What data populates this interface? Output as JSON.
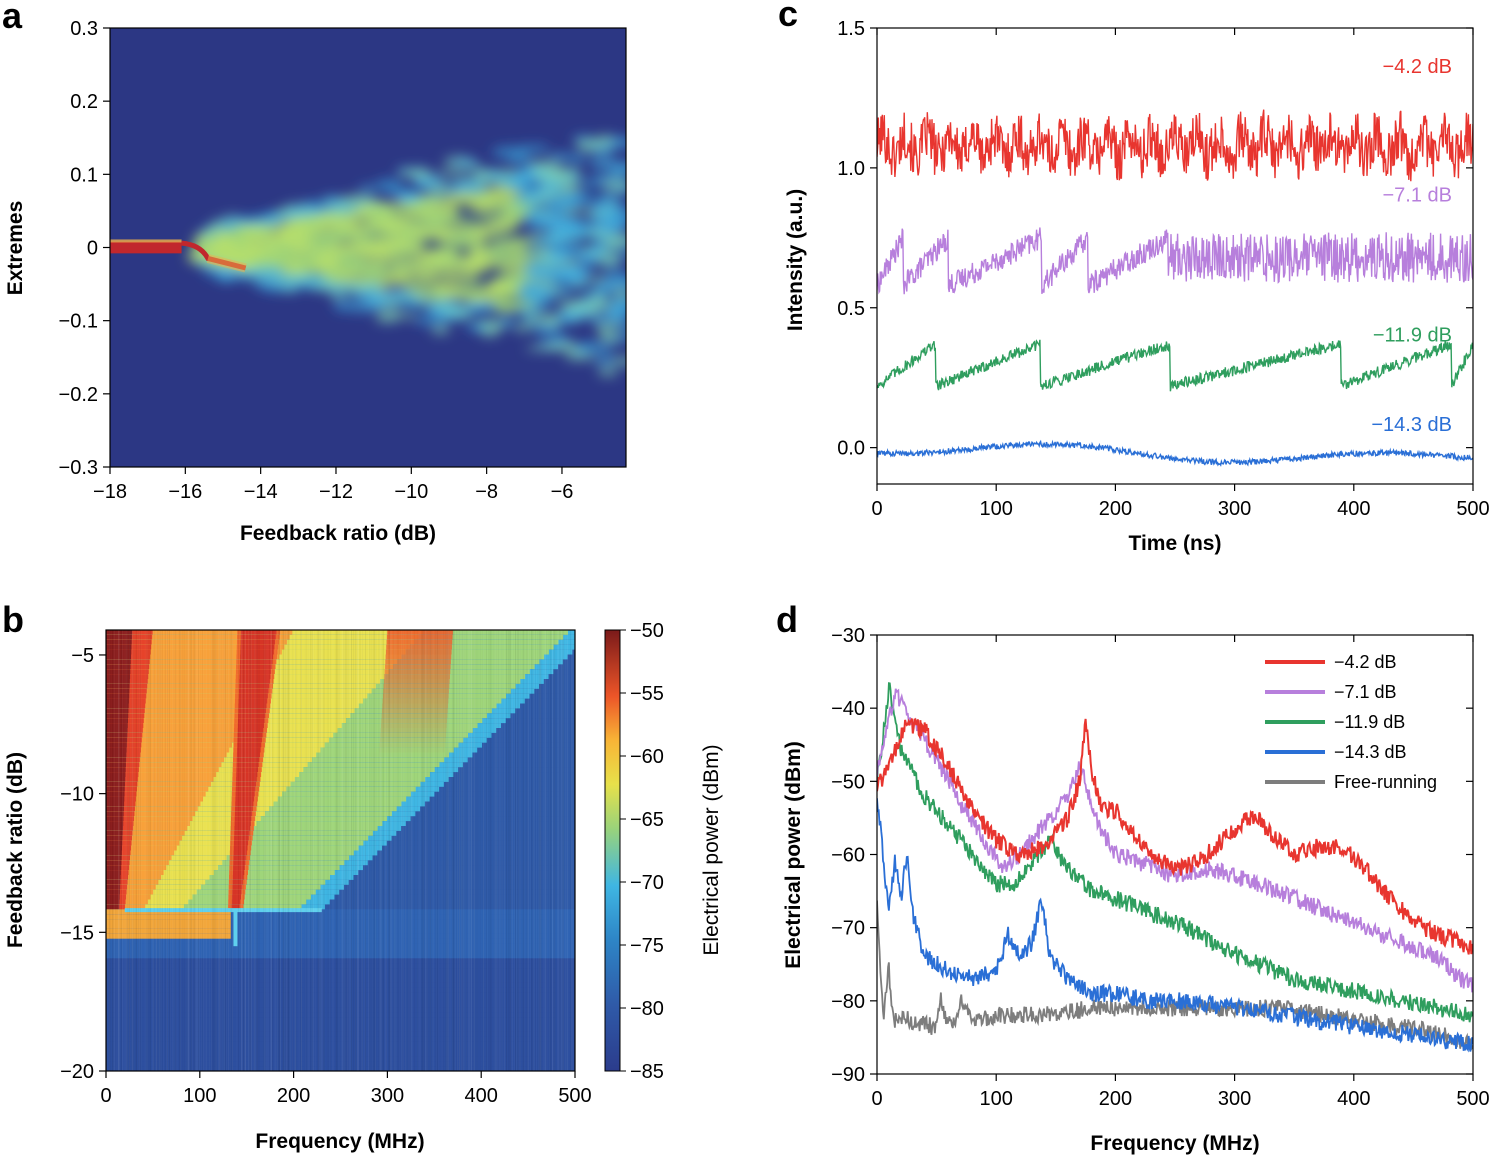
{
  "chart_data": [
    {
      "panel": "a",
      "type": "heatmap",
      "title": "",
      "xlabel": "Feedback ratio (dB)",
      "ylabel": "Extremes",
      "xlim": [
        -18,
        -4.3
      ],
      "ylim": [
        -0.3,
        0.3
      ],
      "xticks": [
        "−18",
        "−16",
        "−14",
        "−12",
        "−10",
        "−8",
        "−6"
      ],
      "xtick_values": [
        -18,
        -16,
        -14,
        -12,
        -10,
        -8,
        -6
      ],
      "yticks": [
        "0.3",
        "0.2",
        "0.1",
        "0",
        "−0.1",
        "−0.2",
        "−0.3"
      ],
      "ytick_values": [
        0.3,
        0.2,
        0.1,
        0,
        -0.1,
        -0.2,
        -0.3
      ],
      "description_regions": {
        "stable_until_db": -15.8,
        "spread_start_db": -15.5,
        "max_extreme_at_minus5db": 0.2,
        "min_extreme_at_minus5db": -0.2
      },
      "colors": {
        "background": "#2c3784",
        "low": "#3aa7dc",
        "mid": "#b8e06c",
        "high": "#c1272d"
      }
    },
    {
      "panel": "b",
      "type": "heatmap",
      "title": "",
      "xlabel": "Frequency (MHz)",
      "ylabel": "Feedback ratio (dB)",
      "xlim": [
        0,
        500
      ],
      "ylim": [
        -20,
        -4.1
      ],
      "xticks": [
        "0",
        "100",
        "200",
        "300",
        "400",
        "500"
      ],
      "xtick_values": [
        0,
        100,
        200,
        300,
        400,
        500
      ],
      "yticks": [
        "−5",
        "−10",
        "−15",
        "−20"
      ],
      "ytick_values": [
        -5,
        -10,
        -15,
        -20
      ],
      "colorbar": {
        "label": "Electrical power (dBm)",
        "range": [
          -85,
          -50
        ],
        "ticks": [
          "−50",
          "−55",
          "−60",
          "−65",
          "−70",
          "−75",
          "−80",
          "−85"
        ],
        "tick_values": [
          -50,
          -55,
          -60,
          -65,
          -70,
          -75,
          -80,
          -85
        ]
      },
      "threshold_feedback_db": -14.2,
      "notch_frequency_mhz": 138
    },
    {
      "panel": "c",
      "type": "line",
      "title": "",
      "xlabel": "Time (ns)",
      "ylabel": "Intensity (a.u.)",
      "xlim": [
        0,
        500
      ],
      "ylim": [
        -0.13,
        1.5
      ],
      "xticks": [
        "0",
        "100",
        "200",
        "300",
        "400",
        "500"
      ],
      "xtick_values": [
        0,
        100,
        200,
        300,
        400,
        500
      ],
      "yticks": [
        "1.5",
        "1.0",
        "0.5",
        "0.0"
      ],
      "ytick_values": [
        1.5,
        1.0,
        0.5,
        0.0
      ],
      "series": [
        {
          "name": "−4.2 dB",
          "color": "#e8352f",
          "offset": 1.08,
          "amplitude": 0.09,
          "regime": "chaotic"
        },
        {
          "name": "−7.1 dB",
          "color": "#b77fdc",
          "offset": 0.68,
          "amplitude": 0.1,
          "regime": "lff_to_chaos",
          "dropouts_ns": [
            22,
            60,
            138,
            177,
            244
          ]
        },
        {
          "name": "−11.9 dB",
          "color": "#2f9e5e",
          "offset": 0.27,
          "amplitude": 0.15,
          "regime": "low_frequency_fluctuations",
          "dropouts_ns": [
            49,
            137,
            246,
            389,
            482
          ]
        },
        {
          "name": "−14.3 dB",
          "color": "#2a6fd6",
          "offset": -0.02,
          "amplitude": 0.04,
          "regime": "weak_fluctuations"
        }
      ]
    },
    {
      "panel": "d",
      "type": "line",
      "title": "",
      "xlabel": "Frequency (MHz)",
      "ylabel": "Electrical power (dBm)",
      "xlim": [
        0,
        500
      ],
      "ylim": [
        -90,
        -30
      ],
      "xticks": [
        "0",
        "100",
        "200",
        "300",
        "400",
        "500"
      ],
      "xtick_values": [
        0,
        100,
        200,
        300,
        400,
        500
      ],
      "yticks": [
        "−30",
        "−40",
        "−50",
        "−60",
        "−70",
        "−80",
        "−90"
      ],
      "ytick_values": [
        -30,
        -40,
        -50,
        -60,
        -70,
        -80,
        -90
      ],
      "legend_position": "top-right",
      "series": [
        {
          "name": "−4.2 dB",
          "color": "#e8352f",
          "x": [
            0,
            10,
            25,
            40,
            60,
            80,
            100,
            120,
            140,
            160,
            170,
            175,
            180,
            190,
            200,
            210,
            230,
            250,
            270,
            290,
            310,
            320,
            330,
            350,
            370,
            390,
            410,
            430,
            450,
            470,
            490,
            500
          ],
          "y": [
            -51,
            -48,
            -42,
            -43,
            -48,
            -54,
            -58,
            -60,
            -59,
            -55,
            -50,
            -41,
            -49,
            -54,
            -54,
            -56,
            -60,
            -62,
            -61,
            -58,
            -55,
            -55,
            -57,
            -60,
            -59,
            -59,
            -62,
            -66,
            -69,
            -71,
            -72,
            -73
          ]
        },
        {
          "name": "−7.1 dB",
          "color": "#b77fdc",
          "x": [
            0,
            5,
            15,
            30,
            50,
            70,
            90,
            105,
            120,
            140,
            160,
            170,
            175,
            180,
            190,
            200,
            220,
            250,
            280,
            300,
            320,
            350,
            380,
            410,
            440,
            470,
            490,
            500
          ],
          "y": [
            -49,
            -45,
            -38,
            -42,
            -47,
            -53,
            -58,
            -62,
            -60,
            -56,
            -52,
            -48,
            -50,
            -54,
            -57,
            -60,
            -61,
            -63,
            -62,
            -63,
            -64,
            -66,
            -68,
            -70,
            -72,
            -74,
            -77,
            -78
          ]
        },
        {
          "name": "−11.9 dB",
          "color": "#2f9e5e",
          "x": [
            0,
            5,
            10,
            20,
            40,
            60,
            80,
            100,
            115,
            130,
            145,
            160,
            180,
            200,
            230,
            260,
            290,
            320,
            350,
            380,
            410,
            440,
            470,
            500
          ],
          "y": [
            -50,
            -44,
            -37,
            -46,
            -52,
            -56,
            -60,
            -64,
            -64,
            -61,
            -58,
            -62,
            -65,
            -66,
            -68,
            -70,
            -73,
            -75,
            -77,
            -78,
            -79,
            -80,
            -81,
            -82
          ]
        },
        {
          "name": "−14.3 dB",
          "color": "#2a6fd6",
          "x": [
            0,
            5,
            10,
            15,
            20,
            25,
            30,
            40,
            60,
            80,
            100,
            110,
            120,
            130,
            138,
            145,
            160,
            180,
            200,
            230,
            260,
            300,
            340,
            380,
            420,
            460,
            500
          ],
          "y": [
            -52,
            -60,
            -68,
            -61,
            -66,
            -60,
            -68,
            -74,
            -76,
            -77,
            -76,
            -71,
            -74,
            -72,
            -66,
            -74,
            -77,
            -79,
            -79,
            -80,
            -80,
            -81,
            -82,
            -83,
            -84,
            -85,
            -86
          ]
        },
        {
          "name": "Free-running",
          "color": "#7d7d7d",
          "x": [
            0,
            3,
            6,
            10,
            12,
            15,
            20,
            30,
            40,
            50,
            53,
            58,
            65,
            70,
            80,
            100,
            140,
            180,
            220,
            260,
            300,
            340,
            380,
            420,
            460,
            500
          ],
          "y": [
            -66,
            -77,
            -82,
            -75,
            -81,
            -83,
            -82,
            -83,
            -83,
            -84,
            -79,
            -83,
            -83,
            -80,
            -83,
            -82,
            -82,
            -81,
            -81,
            -81,
            -81,
            -81,
            -82,
            -83,
            -84,
            -86
          ]
        }
      ]
    }
  ]
}
